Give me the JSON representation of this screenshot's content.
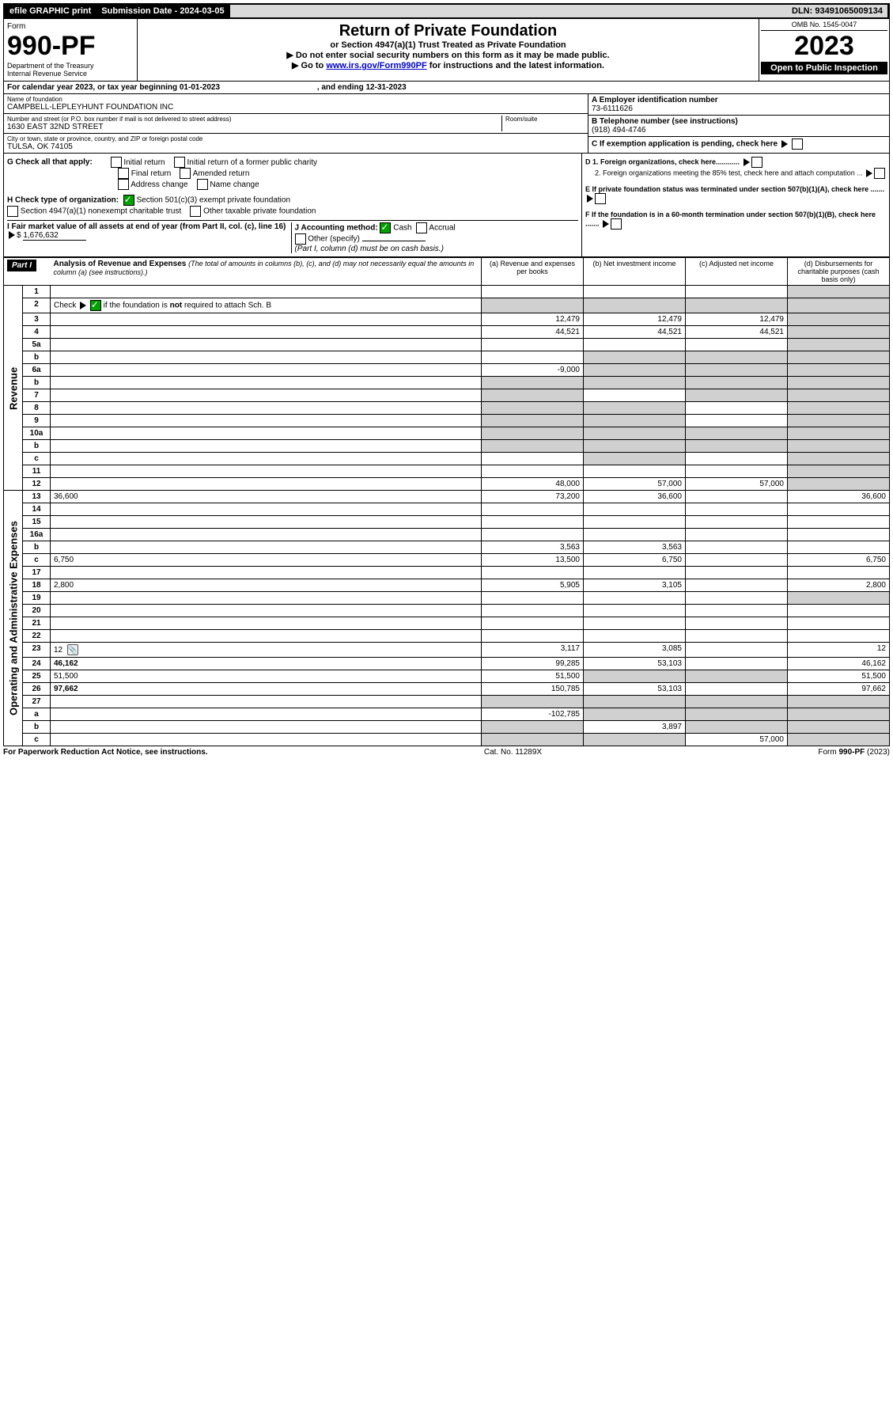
{
  "topbar": {
    "efile": "efile GRAPHIC print",
    "sub_label": "Submission Date - 2024-03-05",
    "dln": "DLN: 93491065009134"
  },
  "form_header": {
    "form_word": "Form",
    "form_number": "990-PF",
    "dept": "Department of the Treasury",
    "irs": "Internal Revenue Service",
    "title": "Return of Private Foundation",
    "subtitle": "or Section 4947(a)(1) Trust Treated as Private Foundation",
    "note1": "▶ Do not enter social security numbers on this form as it may be made public.",
    "note2_prefix": "▶ Go to ",
    "note2_link": "www.irs.gov/Form990PF",
    "note2_suffix": " for instructions and the latest information.",
    "omb": "OMB No. 1545-0047",
    "year": "2023",
    "open": "Open to Public Inspection"
  },
  "period": {
    "prefix": "For calendar year 2023, or tax year beginning ",
    "begin": "01-01-2023",
    "mid": " , and ending ",
    "end": "12-31-2023"
  },
  "id_block": {
    "name_label": "Name of foundation",
    "name": "CAMPBELL-LEPLEYHUNT FOUNDATION INC",
    "street_label": "Number and street (or P.O. box number if mail is not delivered to street address)",
    "street": "1630 EAST 32ND STREET",
    "room_label": "Room/suite",
    "city_label": "City or town, state or province, country, and ZIP or foreign postal code",
    "city": "TULSA, OK  74105",
    "a_label": "A Employer identification number",
    "a_val": "73-6111626",
    "b_label": "B Telephone number (see instructions)",
    "b_val": "(918) 494-4746",
    "c_label": "C If exemption application is pending, check here",
    "d1": "D 1. Foreign organizations, check here............",
    "d2": "2. Foreign organizations meeting the 85% test, check here and attach computation ...",
    "e": "E  If private foundation status was terminated under section 507(b)(1)(A), check here .......",
    "f": "F  If the foundation is in a 60-month termination under section 507(b)(1)(B), check here ......."
  },
  "g": {
    "label": "G Check all that apply:",
    "opts": [
      "Initial return",
      "Final return",
      "Address change",
      "Initial return of a former public charity",
      "Amended return",
      "Name change"
    ]
  },
  "h": {
    "label": "H Check type of organization:",
    "o1": "Section 501(c)(3) exempt private foundation",
    "o2": "Section 4947(a)(1) nonexempt charitable trust",
    "o3": "Other taxable private foundation"
  },
  "i": {
    "label": "I Fair market value of all assets at end of year (from Part II, col. (c), line 16)",
    "val": "1,676,632"
  },
  "j": {
    "label": "J Accounting method:",
    "cash": "Cash",
    "accrual": "Accrual",
    "other": "Other (specify)",
    "note": "(Part I, column (d) must be on cash basis.)"
  },
  "part1": {
    "tag": "Part I",
    "title": "Analysis of Revenue and Expenses",
    "title_note": "(The total of amounts in columns (b), (c), and (d) may not necessarily equal the amounts in column (a) (see instructions).)",
    "col_a": "(a) Revenue and expenses per books",
    "col_b": "(b) Net investment income",
    "col_c": "(c) Adjusted net income",
    "col_d": "(d) Disbursements for charitable purposes (cash basis only)"
  },
  "side_labels": {
    "rev": "Revenue",
    "opx": "Operating and Administrative Expenses"
  },
  "rows": [
    {
      "n": "1",
      "d": "",
      "a": "",
      "b": "",
      "c": ""
    },
    {
      "n": "2",
      "d": "",
      "a": "",
      "b": "",
      "c": "",
      "gray_a": true,
      "gray_bcd": true,
      "check": true
    },
    {
      "n": "3",
      "d": "",
      "a": "12,479",
      "b": "12,479",
      "c": "12,479"
    },
    {
      "n": "4",
      "d": "",
      "a": "44,521",
      "b": "44,521",
      "c": "44,521"
    },
    {
      "n": "5a",
      "d": "",
      "a": "",
      "b": "",
      "c": ""
    },
    {
      "n": "b",
      "d": "",
      "a": "",
      "b": "",
      "c": "",
      "gray_bcd": true
    },
    {
      "n": "6a",
      "d": "",
      "a": "-9,000",
      "b": "",
      "c": "",
      "gray_bcd": true
    },
    {
      "n": "b",
      "d": "",
      "a": "",
      "b": "",
      "c": "",
      "gray_a": true,
      "gray_bcd": true
    },
    {
      "n": "7",
      "d": "",
      "a": "",
      "b": "",
      "c": "",
      "gray_a": true,
      "gray_cd": true
    },
    {
      "n": "8",
      "d": "",
      "a": "",
      "b": "",
      "c": "",
      "gray_ab": true,
      "gray_d": true
    },
    {
      "n": "9",
      "d": "",
      "a": "",
      "b": "",
      "c": "",
      "gray_ab": true,
      "gray_d": true
    },
    {
      "n": "10a",
      "d": "",
      "a": "",
      "b": "",
      "c": "",
      "gray_a": true,
      "gray_bcd": true
    },
    {
      "n": "b",
      "d": "",
      "a": "",
      "b": "",
      "c": "",
      "gray_a": true,
      "gray_bcd": true
    },
    {
      "n": "c",
      "d": "",
      "a": "",
      "b": "",
      "c": "",
      "gray_b": true,
      "gray_d": true
    },
    {
      "n": "11",
      "d": "",
      "a": "",
      "b": "",
      "c": ""
    },
    {
      "n": "12",
      "d": "",
      "a": "48,000",
      "b": "57,000",
      "c": "57,000",
      "bold": true,
      "gray_d": true
    },
    {
      "n": "13",
      "d": "36,600",
      "a": "73,200",
      "b": "36,600",
      "c": ""
    },
    {
      "n": "14",
      "d": "",
      "a": "",
      "b": "",
      "c": ""
    },
    {
      "n": "15",
      "d": "",
      "a": "",
      "b": "",
      "c": ""
    },
    {
      "n": "16a",
      "d": "",
      "a": "",
      "b": "",
      "c": ""
    },
    {
      "n": "b",
      "d": "",
      "a": "3,563",
      "b": "3,563",
      "c": ""
    },
    {
      "n": "c",
      "d": "6,750",
      "a": "13,500",
      "b": "6,750",
      "c": ""
    },
    {
      "n": "17",
      "d": "",
      "a": "",
      "b": "",
      "c": ""
    },
    {
      "n": "18",
      "d": "2,800",
      "a": "5,905",
      "b": "3,105",
      "c": ""
    },
    {
      "n": "19",
      "d": "",
      "a": "",
      "b": "",
      "c": "",
      "gray_d": true
    },
    {
      "n": "20",
      "d": "",
      "a": "",
      "b": "",
      "c": ""
    },
    {
      "n": "21",
      "d": "",
      "a": "",
      "b": "",
      "c": ""
    },
    {
      "n": "22",
      "d": "",
      "a": "",
      "b": "",
      "c": ""
    },
    {
      "n": "23",
      "d": "12",
      "a": "3,117",
      "b": "3,085",
      "c": "",
      "icon": true
    },
    {
      "n": "24",
      "d": "46,162",
      "a": "99,285",
      "b": "53,103",
      "c": "",
      "bold": true
    },
    {
      "n": "25",
      "d": "51,500",
      "a": "51,500",
      "b": "",
      "c": "",
      "gray_bc": true
    },
    {
      "n": "26",
      "d": "97,662",
      "a": "150,785",
      "b": "53,103",
      "c": "",
      "bold": true
    },
    {
      "n": "27",
      "d": "",
      "a": "",
      "b": "",
      "c": "",
      "gray_all": true
    },
    {
      "n": "a",
      "d": "",
      "a": "-102,785",
      "b": "",
      "c": "",
      "bold": true,
      "gray_bcd": true
    },
    {
      "n": "b",
      "d": "",
      "a": "",
      "b": "3,897",
      "c": "",
      "bold": true,
      "gray_a": true,
      "gray_cd": true
    },
    {
      "n": "c",
      "d": "",
      "a": "",
      "b": "",
      "c": "57,000",
      "bold": true,
      "gray_ab": true,
      "gray_d": true
    }
  ],
  "footer": {
    "left": "For Paperwork Reduction Act Notice, see instructions.",
    "mid": "Cat. No. 11289X",
    "right": "Form 990-PF (2023)"
  }
}
